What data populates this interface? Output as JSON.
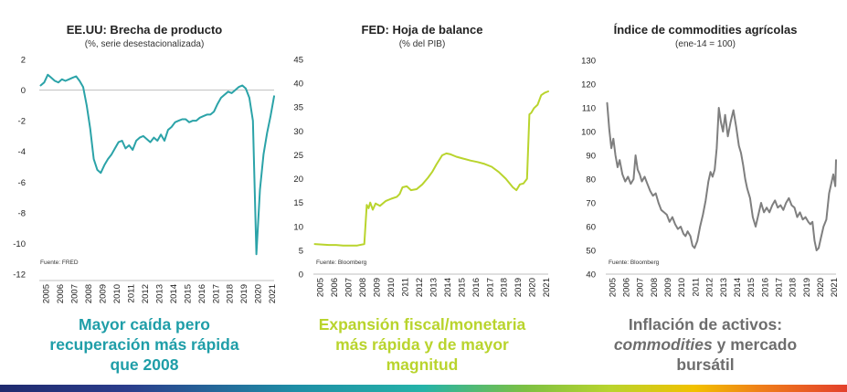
{
  "chart_data": [
    {
      "type": "line",
      "title": "EE.UU: Brecha de producto",
      "subtitle": "(%, serie desestacionalizada)",
      "source": "Fuente: FRED",
      "color": "#2ba3a8",
      "ylim": [
        -12,
        2
      ],
      "yticks": [
        "2",
        "0",
        "-2",
        "-4",
        "-6",
        "-8",
        "-10",
        "-12"
      ],
      "yticks_values": [
        2,
        0,
        -2,
        -4,
        -6,
        -8,
        -10,
        -12
      ],
      "xticks": [
        "2005",
        "2006",
        "2007",
        "2008",
        "2009",
        "2010",
        "2011",
        "2012",
        "2013",
        "2014",
        "2015",
        "2016",
        "2017",
        "2018",
        "2019",
        "2020",
        "2021"
      ],
      "xlim": [
        2004.9,
        2021.5
      ],
      "zero_line": true,
      "x": [
        2005.0,
        2005.25,
        2005.5,
        2005.75,
        2006.0,
        2006.25,
        2006.5,
        2006.75,
        2007.0,
        2007.25,
        2007.5,
        2007.75,
        2008.0,
        2008.25,
        2008.5,
        2008.75,
        2009.0,
        2009.25,
        2009.5,
        2009.75,
        2010.0,
        2010.25,
        2010.5,
        2010.75,
        2011.0,
        2011.25,
        2011.5,
        2011.75,
        2012.0,
        2012.25,
        2012.5,
        2012.75,
        2013.0,
        2013.25,
        2013.5,
        2013.75,
        2014.0,
        2014.25,
        2014.5,
        2014.75,
        2015.0,
        2015.25,
        2015.5,
        2015.75,
        2016.0,
        2016.25,
        2016.5,
        2016.75,
        2017.0,
        2017.25,
        2017.5,
        2017.75,
        2018.0,
        2018.25,
        2018.5,
        2018.75,
        2019.0,
        2019.25,
        2019.5,
        2019.75,
        2020.0,
        2020.25,
        2020.5,
        2020.75,
        2021.0,
        2021.25,
        2021.5
      ],
      "values": [
        0.3,
        0.5,
        1.0,
        0.8,
        0.6,
        0.5,
        0.7,
        0.6,
        0.7,
        0.8,
        0.9,
        0.6,
        0.2,
        -1.0,
        -2.5,
        -4.5,
        -5.2,
        -5.4,
        -4.9,
        -4.5,
        -4.2,
        -3.8,
        -3.4,
        -3.3,
        -3.8,
        -3.6,
        -3.9,
        -3.3,
        -3.1,
        -3.0,
        -3.2,
        -3.4,
        -3.1,
        -3.3,
        -2.9,
        -3.3,
        -2.6,
        -2.4,
        -2.1,
        -2.0,
        -1.9,
        -1.9,
        -2.1,
        -2.0,
        -2.0,
        -1.8,
        -1.7,
        -1.6,
        -1.6,
        -1.4,
        -0.9,
        -0.5,
        -0.3,
        -0.1,
        -0.2,
        0.0,
        0.2,
        0.3,
        0.1,
        -0.5,
        -2.0,
        -10.7,
        -6.5,
        -4.2,
        -2.8,
        -1.7,
        -0.4
      ]
    },
    {
      "type": "line",
      "title": "FED: Hoja de balance",
      "subtitle": "(% del PIB)",
      "source": "Fuente: Bloomberg",
      "color": "#b9d42d",
      "ylim": [
        0,
        45
      ],
      "yticks": [
        "45",
        "40",
        "35",
        "30",
        "25",
        "20",
        "15",
        "10",
        "5",
        "0"
      ],
      "yticks_values": [
        45,
        40,
        35,
        30,
        25,
        20,
        15,
        10,
        5,
        0
      ],
      "xticks": [
        "2005",
        "2006",
        "2007",
        "2008",
        "2009",
        "2010",
        "2011",
        "2012",
        "2013",
        "2014",
        "2015",
        "2016",
        "2017",
        "2018",
        "2019",
        "2020",
        "2021"
      ],
      "xlim": [
        2004.9,
        2021.5
      ],
      "x": [
        2005.0,
        2005.5,
        2006.0,
        2006.5,
        2007.0,
        2007.5,
        2008.0,
        2008.5,
        2008.67,
        2008.8,
        2008.92,
        2009.1,
        2009.3,
        2009.6,
        2010.0,
        2010.4,
        2010.8,
        2011.0,
        2011.2,
        2011.5,
        2011.8,
        2012.2,
        2012.6,
        2013.0,
        2013.3,
        2013.6,
        2014.0,
        2014.3,
        2014.6,
        2015.0,
        2015.5,
        2016.0,
        2016.5,
        2017.0,
        2017.5,
        2018.0,
        2018.5,
        2019.0,
        2019.25,
        2019.5,
        2019.75,
        2020.0,
        2020.17,
        2020.3,
        2020.5,
        2020.75,
        2021.0,
        2021.25,
        2021.5
      ],
      "values": [
        6.3,
        6.2,
        6.1,
        6.1,
        6.0,
        6.0,
        6.0,
        6.3,
        14.5,
        13.8,
        15.0,
        13.5,
        14.8,
        14.3,
        15.3,
        15.8,
        16.2,
        16.8,
        18.2,
        18.4,
        17.6,
        17.8,
        18.8,
        20.2,
        21.4,
        23.0,
        24.9,
        25.3,
        25.1,
        24.6,
        24.2,
        23.8,
        23.5,
        23.1,
        22.5,
        21.4,
        20.0,
        18.2,
        17.6,
        18.8,
        19.0,
        20.0,
        33.5,
        33.8,
        34.8,
        35.5,
        37.5,
        38.0,
        38.3
      ]
    },
    {
      "type": "line",
      "title": "Índice de commodities agrícolas",
      "subtitle": "(ene-14 = 100)",
      "source": "Fuente: Bloomberg",
      "color": "#7f7f7f",
      "ylim": [
        40,
        130
      ],
      "yticks": [
        "130",
        "120",
        "110",
        "100",
        "90",
        "80",
        "70",
        "60",
        "50",
        "40"
      ],
      "yticks_values": [
        130,
        120,
        110,
        100,
        90,
        80,
        70,
        60,
        50,
        40
      ],
      "xticks": [
        "2005",
        "2006",
        "2007",
        "2008",
        "2009",
        "2010",
        "2011",
        "2012",
        "2013",
        "2014",
        "2015",
        "2016",
        "2017",
        "2018",
        "2019",
        "2020",
        "2021"
      ],
      "xlim": [
        2004.9,
        2021.5
      ],
      "x": [
        2005.0,
        2005.15,
        2005.3,
        2005.45,
        2005.6,
        2005.75,
        2005.9,
        2006.1,
        2006.3,
        2006.5,
        2006.7,
        2006.9,
        2007.05,
        2007.2,
        2007.35,
        2007.5,
        2007.7,
        2007.9,
        2008.1,
        2008.3,
        2008.5,
        2008.7,
        2008.9,
        2009.1,
        2009.3,
        2009.5,
        2009.7,
        2009.9,
        2010.1,
        2010.3,
        2010.5,
        2010.65,
        2010.8,
        2011.0,
        2011.15,
        2011.3,
        2011.5,
        2011.7,
        2011.9,
        2012.1,
        2012.3,
        2012.45,
        2012.6,
        2012.75,
        2012.9,
        2013.05,
        2013.2,
        2013.35,
        2013.5,
        2013.7,
        2013.9,
        2014.1,
        2014.3,
        2014.5,
        2014.65,
        2014.8,
        2014.95,
        2015.1,
        2015.3,
        2015.5,
        2015.7,
        2015.9,
        2016.1,
        2016.3,
        2016.5,
        2016.7,
        2016.9,
        2017.1,
        2017.3,
        2017.5,
        2017.7,
        2017.9,
        2018.1,
        2018.3,
        2018.5,
        2018.7,
        2018.9,
        2019.1,
        2019.3,
        2019.5,
        2019.65,
        2019.8,
        2019.95,
        2020.1,
        2020.25,
        2020.4,
        2020.6,
        2020.8,
        2021.0,
        2021.15,
        2021.3,
        2021.45,
        2021.5
      ],
      "values": [
        112,
        101,
        93,
        97,
        90,
        85,
        88,
        82,
        79,
        81,
        78,
        80,
        90,
        84,
        82,
        79,
        81,
        78,
        75,
        73,
        74,
        70,
        67,
        66,
        65,
        62,
        64,
        61,
        59,
        60,
        57,
        56,
        58,
        56,
        52,
        51,
        54,
        60,
        65,
        71,
        79,
        83,
        81,
        84,
        93,
        110,
        104,
        100,
        107,
        98,
        104,
        109,
        102,
        94,
        91,
        86,
        80,
        76,
        72,
        64,
        60,
        65,
        70,
        66,
        68,
        66,
        69,
        71,
        68,
        69,
        67,
        70,
        72,
        69,
        68,
        64,
        66,
        63,
        64,
        62,
        61,
        62,
        54,
        50,
        51,
        55,
        60,
        63,
        74,
        78,
        82,
        77,
        88
      ]
    }
  ],
  "captions": [
    {
      "lines": [
        "Mayor caída pero",
        "recuperación más rápida",
        "que 2008"
      ],
      "color": "#1f9ea8"
    },
    {
      "lines": [
        "Expansión fiscal/monetaria",
        "más rápida y de mayor",
        "magnitud"
      ],
      "color": "#b9d42d"
    },
    {
      "lines": [
        "Inflación de activos:",
        "commodities y mercado",
        "bursátil"
      ],
      "color": "#6d6d6d"
    }
  ]
}
